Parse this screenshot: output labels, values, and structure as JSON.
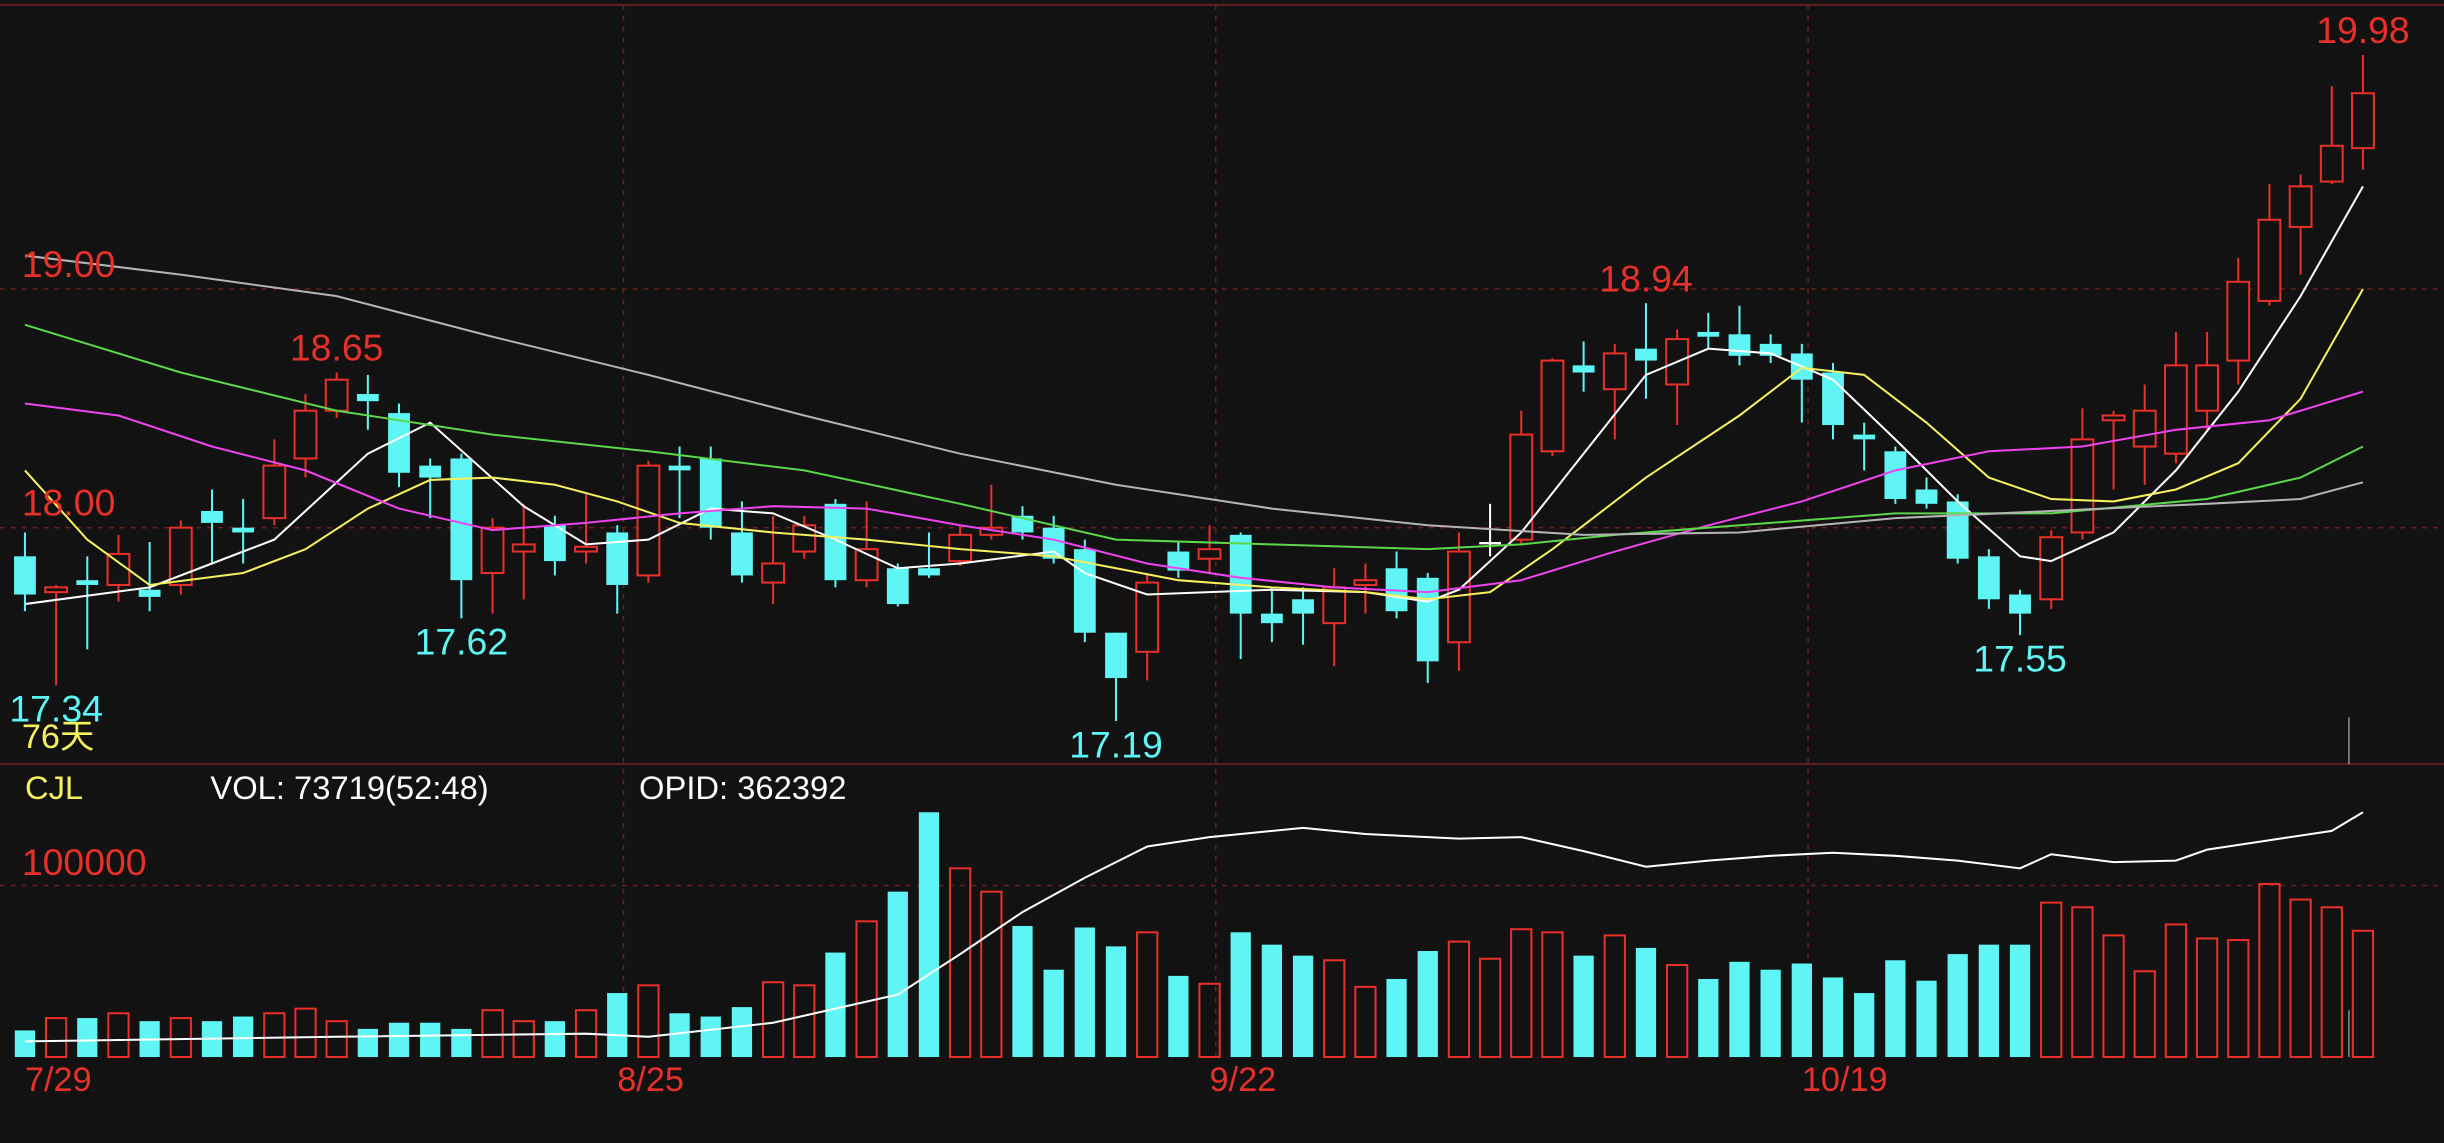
{
  "chart_data": [
    {
      "type": "candlestick",
      "period_label": "76天",
      "ylim": [
        17.01,
        20.19
      ],
      "yticks": [
        {
          "value": 19,
          "label": "19.00"
        },
        {
          "value": 18,
          "label": "18.00"
        }
      ],
      "grid": true,
      "up_color": "#e8302a",
      "down_color": "#5ff5f5",
      "flat_color": "#ffffff",
      "open": [
        17.88,
        17.73,
        17.78,
        17.76,
        17.74,
        17.76,
        18.07,
        18.0,
        18.04,
        18.29,
        18.49,
        18.56,
        18.48,
        18.26,
        18.29,
        17.81,
        17.9,
        18.01,
        17.9,
        17.98,
        17.8,
        18.26,
        18.29,
        17.98,
        17.77,
        17.9,
        18.1,
        17.78,
        17.83,
        17.83,
        17.86,
        17.97,
        18.05,
        18.0,
        17.91,
        17.56,
        17.48,
        17.9,
        17.87,
        17.97,
        17.64,
        17.7,
        17.6,
        17.76,
        17.83,
        17.79,
        17.52,
        17.94,
        17.95,
        18.32,
        18.68,
        18.58,
        18.75,
        18.6,
        18.82,
        18.81,
        18.77,
        18.73,
        18.65,
        18.39,
        18.32,
        18.16,
        18.11,
        17.88,
        17.72,
        17.7,
        17.98,
        18.45,
        18.34,
        18.31,
        18.49,
        18.7,
        18.95,
        19.26,
        19.45,
        19.59
      ],
      "high": [
        17.98,
        17.76,
        17.88,
        17.97,
        17.94,
        18.03,
        18.16,
        18.12,
        18.37,
        18.56,
        18.65,
        18.64,
        18.52,
        18.29,
        18.31,
        18.04,
        18.1,
        18.05,
        18.14,
        18.01,
        18.28,
        18.34,
        18.34,
        18.11,
        18.05,
        18.05,
        18.12,
        18.11,
        17.85,
        17.98,
        18.01,
        18.18,
        18.09,
        18.05,
        17.95,
        17.56,
        17.81,
        17.94,
        18.01,
        17.98,
        17.75,
        17.75,
        17.83,
        17.85,
        17.9,
        17.81,
        17.98,
        18.1,
        18.49,
        18.71,
        18.78,
        18.77,
        18.94,
        18.83,
        18.9,
        18.93,
        18.81,
        18.77,
        18.69,
        18.44,
        18.34,
        18.21,
        18.14,
        17.91,
        17.74,
        17.99,
        18.5,
        18.49,
        18.6,
        18.82,
        18.82,
        19.13,
        19.44,
        19.48,
        19.85,
        19.98
      ],
      "low": [
        17.65,
        17.34,
        17.49,
        17.69,
        17.65,
        17.72,
        17.85,
        17.85,
        18.01,
        18.21,
        18.46,
        18.41,
        18.17,
        18.04,
        17.62,
        17.64,
        17.7,
        17.8,
        17.85,
        17.64,
        17.77,
        18.04,
        17.95,
        17.77,
        17.68,
        17.87,
        17.75,
        17.75,
        17.67,
        17.79,
        17.84,
        17.95,
        17.95,
        17.85,
        17.52,
        17.19,
        17.36,
        17.79,
        17.81,
        17.45,
        17.52,
        17.51,
        17.42,
        17.64,
        17.62,
        17.35,
        17.4,
        17.88,
        17.93,
        18.3,
        18.57,
        18.37,
        18.54,
        18.43,
        18.75,
        18.68,
        18.69,
        18.44,
        18.37,
        18.24,
        18.1,
        18.08,
        17.85,
        17.66,
        17.55,
        17.66,
        17.95,
        18.16,
        18.18,
        18.27,
        18.41,
        18.6,
        18.93,
        19.06,
        19.44,
        19.5
      ],
      "close": [
        17.72,
        17.75,
        17.76,
        17.89,
        17.71,
        18.0,
        18.02,
        17.98,
        18.26,
        18.49,
        18.62,
        18.53,
        18.23,
        18.21,
        17.78,
        18.0,
        17.93,
        17.86,
        17.92,
        17.76,
        18.26,
        18.24,
        18.0,
        17.8,
        17.85,
        18.01,
        17.78,
        17.91,
        17.68,
        17.8,
        17.97,
        18.0,
        17.98,
        17.87,
        17.56,
        17.37,
        17.77,
        17.82,
        17.91,
        17.64,
        17.6,
        17.64,
        17.75,
        17.78,
        17.65,
        17.44,
        17.9,
        17.94,
        18.39,
        18.7,
        18.65,
        18.73,
        18.7,
        18.79,
        18.8,
        18.72,
        18.72,
        18.62,
        18.43,
        18.37,
        18.12,
        18.1,
        17.87,
        17.7,
        17.64,
        17.96,
        18.37,
        18.47,
        18.49,
        18.68,
        18.68,
        19.03,
        19.29,
        19.43,
        19.6,
        19.82
      ],
      "extremes": [
        19.98,
        18.94,
        18.65,
        17.62,
        17.19,
        17.55,
        17.34
      ],
      "series": [
        {
          "color": "#ffffff",
          "x": [
            0,
            4,
            8,
            11,
            13,
            16,
            18,
            20,
            22,
            24,
            26,
            28,
            30,
            33,
            34,
            36,
            38,
            40,
            43,
            45,
            46,
            48,
            50,
            52,
            54,
            56,
            58,
            60,
            62,
            64,
            65,
            67,
            69,
            71,
            73,
            75
          ],
          "values": [
            17.68,
            17.75,
            17.95,
            18.31,
            18.44,
            18.09,
            17.93,
            17.95,
            18.08,
            18.06,
            17.95,
            17.83,
            17.85,
            17.9,
            17.81,
            17.72,
            17.73,
            17.74,
            17.73,
            17.69,
            17.74,
            17.98,
            18.31,
            18.64,
            18.75,
            18.73,
            18.62,
            18.37,
            18.11,
            17.88,
            17.86,
            17.98,
            18.24,
            18.57,
            18.97,
            19.43
          ]
        },
        {
          "color": "#f4f060",
          "x": [
            0,
            2,
            4,
            7,
            9,
            11,
            13,
            15,
            17,
            19,
            21,
            24,
            27,
            30,
            33,
            35,
            37,
            40,
            43,
            45,
            47,
            49,
            52,
            55,
            57,
            59,
            61,
            63,
            65,
            67,
            69,
            71,
            73,
            75
          ],
          "values": [
            18.24,
            17.95,
            17.76,
            17.81,
            17.91,
            18.08,
            18.2,
            18.21,
            18.18,
            18.11,
            18.02,
            17.98,
            17.95,
            17.91,
            17.88,
            17.83,
            17.78,
            17.75,
            17.73,
            17.7,
            17.73,
            17.91,
            18.21,
            18.47,
            18.67,
            18.64,
            18.44,
            18.21,
            18.12,
            18.11,
            18.16,
            18.27,
            18.54,
            19.0
          ]
        },
        {
          "color": "#ee44ee",
          "x": [
            0,
            3,
            6,
            9,
            12,
            15,
            18,
            21,
            24,
            27,
            30,
            33,
            36,
            39,
            42,
            45,
            48,
            51,
            54,
            57,
            60,
            63,
            66,
            69,
            72,
            75
          ],
          "values": [
            18.52,
            18.47,
            18.34,
            18.24,
            18.08,
            17.99,
            18.02,
            18.06,
            18.09,
            18.08,
            18.01,
            17.95,
            17.85,
            17.79,
            17.75,
            17.73,
            17.78,
            17.9,
            18.01,
            18.11,
            18.24,
            18.32,
            18.34,
            18.41,
            18.45,
            18.57
          ]
        },
        {
          "color": "#5cd64a",
          "x": [
            0,
            5,
            10,
            15,
            20,
            25,
            30,
            35,
            40,
            45,
            48,
            51,
            55,
            60,
            65,
            70,
            73,
            75
          ],
          "values": [
            18.85,
            18.65,
            18.49,
            18.39,
            18.32,
            18.24,
            18.1,
            17.95,
            17.93,
            17.91,
            17.93,
            17.97,
            18.01,
            18.06,
            18.06,
            18.12,
            18.21,
            18.34
          ]
        },
        {
          "color": "#b4b4b4",
          "x": [
            0,
            5,
            10,
            15,
            20,
            25,
            30,
            35,
            40,
            45,
            50,
            55,
            60,
            65,
            70,
            73,
            75
          ],
          "values": [
            19.14,
            19.06,
            18.97,
            18.8,
            18.64,
            18.47,
            18.31,
            18.18,
            18.08,
            18.01,
            17.97,
            17.98,
            18.04,
            18.07,
            18.1,
            18.12,
            18.19
          ]
        }
      ]
    },
    {
      "type": "bar",
      "title": "CJL",
      "subtitles": [
        "VOL: 73719(52:48)",
        "OPID: 362392"
      ],
      "categories": [
        "7/29",
        null,
        null,
        null,
        null,
        null,
        null,
        null,
        null,
        null,
        null,
        null,
        null,
        null,
        null,
        null,
        null,
        null,
        null,
        "8/25",
        null,
        null,
        null,
        null,
        null,
        null,
        null,
        null,
        null,
        null,
        null,
        null,
        null,
        null,
        null,
        null,
        null,
        null,
        "9/22",
        null,
        null,
        null,
        null,
        null,
        null,
        null,
        null,
        null,
        null,
        null,
        null,
        null,
        null,
        null,
        null,
        null,
        null,
        "10/19",
        null,
        null,
        null,
        null,
        null,
        null,
        null,
        null,
        null,
        null,
        null,
        null,
        null,
        null,
        null,
        null,
        null,
        null
      ],
      "values": [
        15500,
        22700,
        22700,
        25500,
        20900,
        22700,
        20900,
        23600,
        25500,
        28200,
        20900,
        16400,
        20000,
        20000,
        16400,
        27300,
        20900,
        20900,
        27300,
        37300,
        41800,
        25500,
        23600,
        29100,
        43600,
        41800,
        60900,
        79100,
        96400,
        142700,
        110000,
        96400,
        76400,
        50900,
        75500,
        64500,
        72700,
        47300,
        42700,
        72700,
        65500,
        59100,
        56400,
        40900,
        45500,
        61800,
        67300,
        57300,
        74500,
        72700,
        59100,
        70900,
        63600,
        53600,
        45500,
        55500,
        50900,
        54500,
        46400,
        37300,
        56400,
        44500,
        60000,
        65500,
        65500,
        90000,
        87300,
        70900,
        50000,
        77300,
        69100,
        68200,
        100900,
        91800,
        87300,
        73600
      ],
      "ylim": [
        0,
        169000
      ],
      "yticks": [
        100000
      ],
      "grid": true,
      "series": [
        {
          "color": "#ffffff",
          "x": [
            0,
            10,
            18,
            20,
            24,
            26,
            28,
            30,
            32,
            34,
            36,
            38,
            41,
            43,
            46,
            48,
            50,
            52,
            54,
            56,
            58,
            60,
            62,
            64,
            65,
            67,
            69,
            70,
            72,
            74,
            75
          ],
          "values": [
            9100,
            11800,
            13600,
            11800,
            20000,
            28200,
            36400,
            60000,
            84500,
            104500,
            122700,
            128200,
            133600,
            130000,
            127300,
            128200,
            120000,
            110900,
            114500,
            117300,
            119100,
            117300,
            114500,
            110000,
            118200,
            113600,
            114500,
            120900,
            126400,
            131800,
            142700
          ]
        }
      ]
    }
  ]
}
